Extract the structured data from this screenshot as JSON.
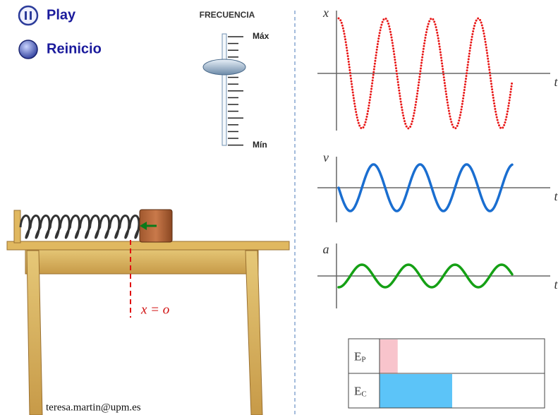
{
  "controls": {
    "play": "Play",
    "reset": "Reinicio"
  },
  "slider": {
    "title": "FRECUENCIA",
    "max_label": "Máx",
    "min_label": "Mín"
  },
  "graphs": [
    {
      "y_label": "x",
      "x_label": "t"
    },
    {
      "y_label": "v",
      "x_label": "t"
    },
    {
      "y_label": "a",
      "x_label": "t"
    }
  ],
  "scene": {
    "equilibrium_label": "x = o",
    "author": "teresa.martin@upm.es"
  },
  "energy": [
    {
      "symbol": "E",
      "subscript": "P",
      "fraction": 0.11
    },
    {
      "symbol": "E",
      "subscript": "C",
      "fraction": 0.44
    }
  ]
}
